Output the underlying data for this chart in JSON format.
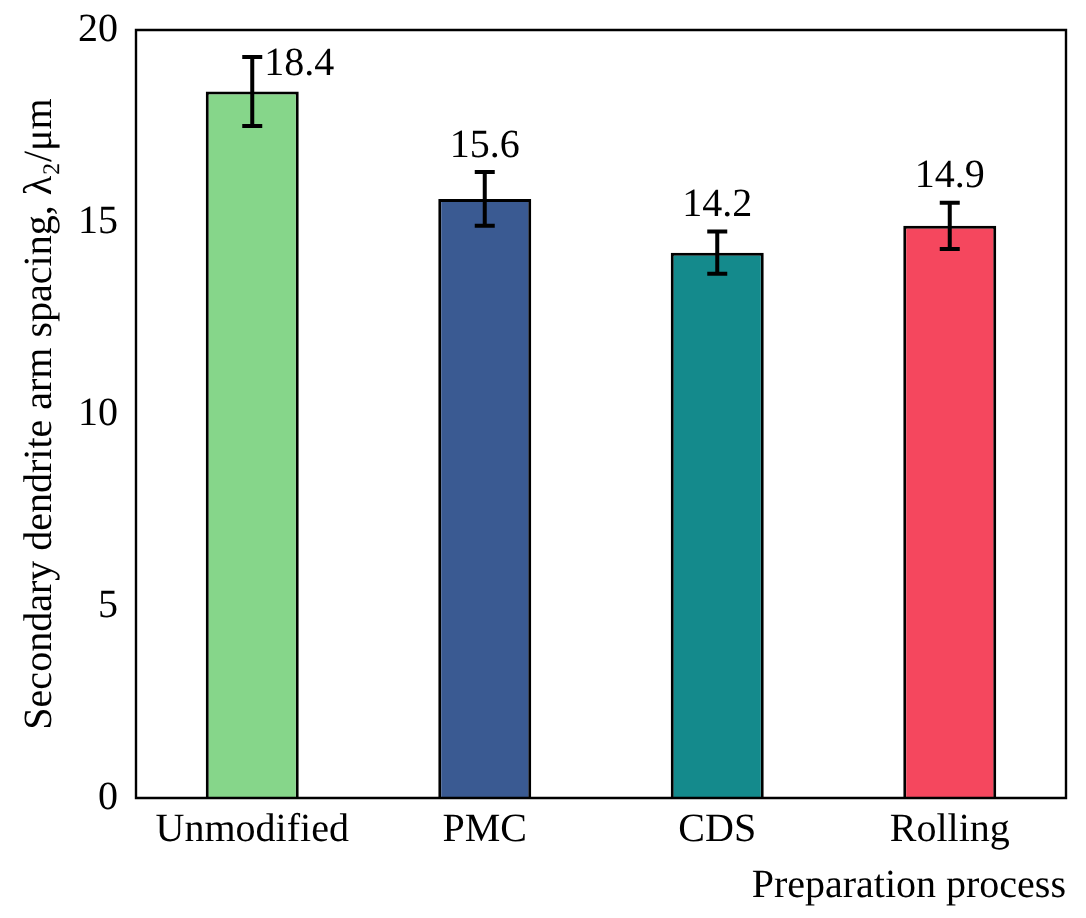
{
  "chart_data": {
    "type": "bar",
    "xlabel": "Preparation process",
    "ylabel": "Secondary dendrite arm spacing, λ₂/μm",
    "categories": [
      "Unmodified",
      "PMC",
      "CDS",
      "Rolling"
    ],
    "values": [
      18.4,
      15.6,
      14.2,
      14.9
    ],
    "colors": [
      "#86d68a",
      "#3a5a92",
      "#148a8c",
      "#f5475e"
    ],
    "errors": [
      0.9,
      0.7,
      0.55,
      0.6
    ],
    "ylim": [
      0,
      20
    ],
    "yticks": [
      0,
      5,
      10,
      15,
      20
    ],
    "grid": false,
    "data_labels": true,
    "legend": false
  }
}
